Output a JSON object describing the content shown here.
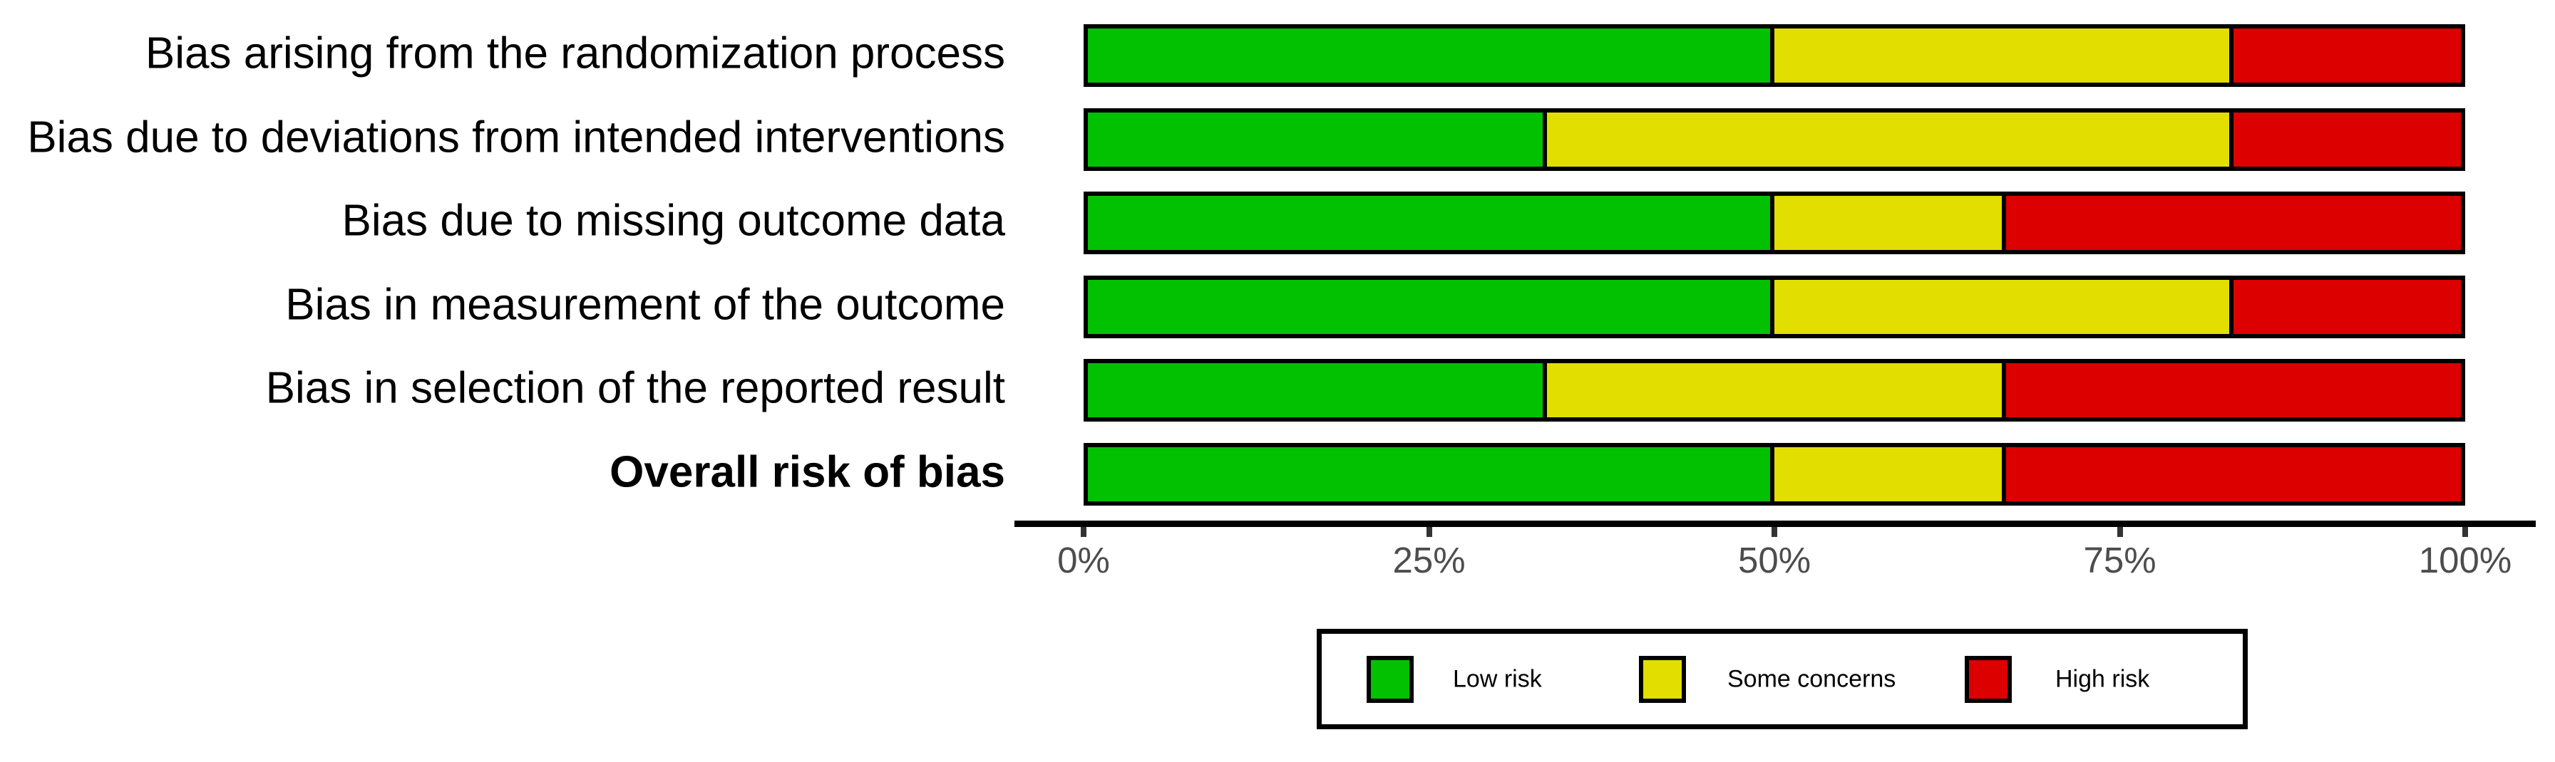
{
  "chart_data": {
    "type": "bar",
    "variant": "horizontal-stacked",
    "title": "",
    "xlabel": "",
    "ylabel": "",
    "x_range_percent": [
      0,
      100
    ],
    "grid": false,
    "categories": [
      {
        "label": "Bias arising from the randomization process",
        "bold": false
      },
      {
        "label": "Bias due to deviations from intended interventions",
        "bold": false
      },
      {
        "label": "Bias due to missing outcome data",
        "bold": false
      },
      {
        "label": "Bias in measurement of the outcome",
        "bold": false
      },
      {
        "label": "Bias in selection of the reported result",
        "bold": false
      },
      {
        "label": "Overall risk of bias",
        "bold": true
      }
    ],
    "series": [
      {
        "name": "Low risk",
        "color": "#02C100",
        "values": [
          50,
          33.33,
          50,
          50,
          33.33,
          50
        ]
      },
      {
        "name": "Some concerns",
        "color": "#E2DE00",
        "values": [
          33.33,
          50,
          16.67,
          33.33,
          33.33,
          16.67
        ]
      },
      {
        "name": "High risk",
        "color": "#DC0000",
        "values": [
          16.67,
          16.67,
          33.33,
          16.67,
          33.33,
          33.33
        ]
      }
    ],
    "x_ticks": [
      {
        "value": 0,
        "label": "0%"
      },
      {
        "value": 25,
        "label": "25%"
      },
      {
        "value": 50,
        "label": "50%"
      },
      {
        "value": 75,
        "label": "75%"
      },
      {
        "value": 100,
        "label": "100%"
      }
    ],
    "legend": {
      "position": "bottom",
      "entries": [
        {
          "label": "Low risk",
          "color": "#02C100"
        },
        {
          "label": "Some concerns",
          "color": "#E2DE00"
        },
        {
          "label": "High risk",
          "color": "#DC0000"
        }
      ]
    }
  },
  "colors": {
    "background": "#FFFFFF",
    "bar_border": "#000000",
    "axis_line": "#000000",
    "tick_mark": "#333333",
    "tick_label_text": "#4D4D4D",
    "category_label_text": "#000000",
    "legend_border": "#000000"
  }
}
